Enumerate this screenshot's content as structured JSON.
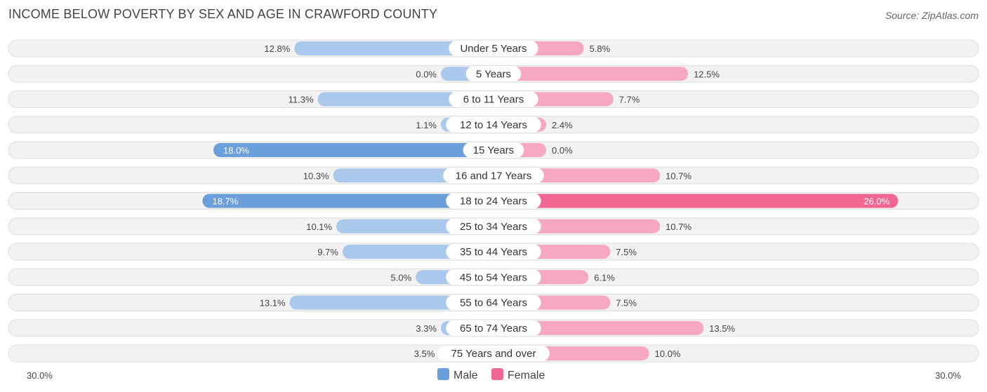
{
  "title": "INCOME BELOW POVERTY BY SEX AND AGE IN CRAWFORD COUNTY",
  "source": "Source: ZipAtlas.com",
  "chart_data": {
    "type": "bar",
    "orientation": "horizontal-diverging",
    "categories": [
      "Under 5 Years",
      "5 Years",
      "6 to 11 Years",
      "12 to 14 Years",
      "15 Years",
      "16 and 17 Years",
      "18 to 24 Years",
      "25 to 34 Years",
      "35 to 44 Years",
      "45 to 54 Years",
      "55 to 64 Years",
      "65 to 74 Years",
      "75 Years and over"
    ],
    "series": [
      {
        "name": "Male",
        "values": [
          12.8,
          0.0,
          11.3,
          1.1,
          18.0,
          10.3,
          18.7,
          10.1,
          9.7,
          5.0,
          13.1,
          3.3,
          3.5
        ],
        "labels": [
          "12.8%",
          "0.0%",
          "11.3%",
          "1.1%",
          "18.0%",
          "10.3%",
          "18.7%",
          "10.1%",
          "9.7%",
          "5.0%",
          "13.1%",
          "3.3%",
          "3.5%"
        ]
      },
      {
        "name": "Female",
        "values": [
          5.8,
          12.5,
          7.7,
          2.4,
          0.0,
          10.7,
          26.0,
          10.7,
          7.5,
          6.1,
          7.5,
          13.5,
          10.0
        ],
        "labels": [
          "5.8%",
          "12.5%",
          "7.7%",
          "2.4%",
          "0.0%",
          "10.7%",
          "26.0%",
          "10.7%",
          "7.5%",
          "6.1%",
          "7.5%",
          "13.5%",
          "10.0%"
        ]
      }
    ],
    "xlim": [
      -30,
      30
    ],
    "axis_labels": {
      "left": "30.0%",
      "right": "30.0%"
    },
    "legend": {
      "position": "bottom-center",
      "entries": [
        "Male",
        "Female"
      ]
    },
    "colors": {
      "male_strong": "#6a9fdc",
      "male_light": "#a9c8eb",
      "female_strong": "#f06892",
      "female_light": "#f5a8c0",
      "row_bg": "#f2f2f2",
      "row_border": "#dddddd"
    }
  }
}
